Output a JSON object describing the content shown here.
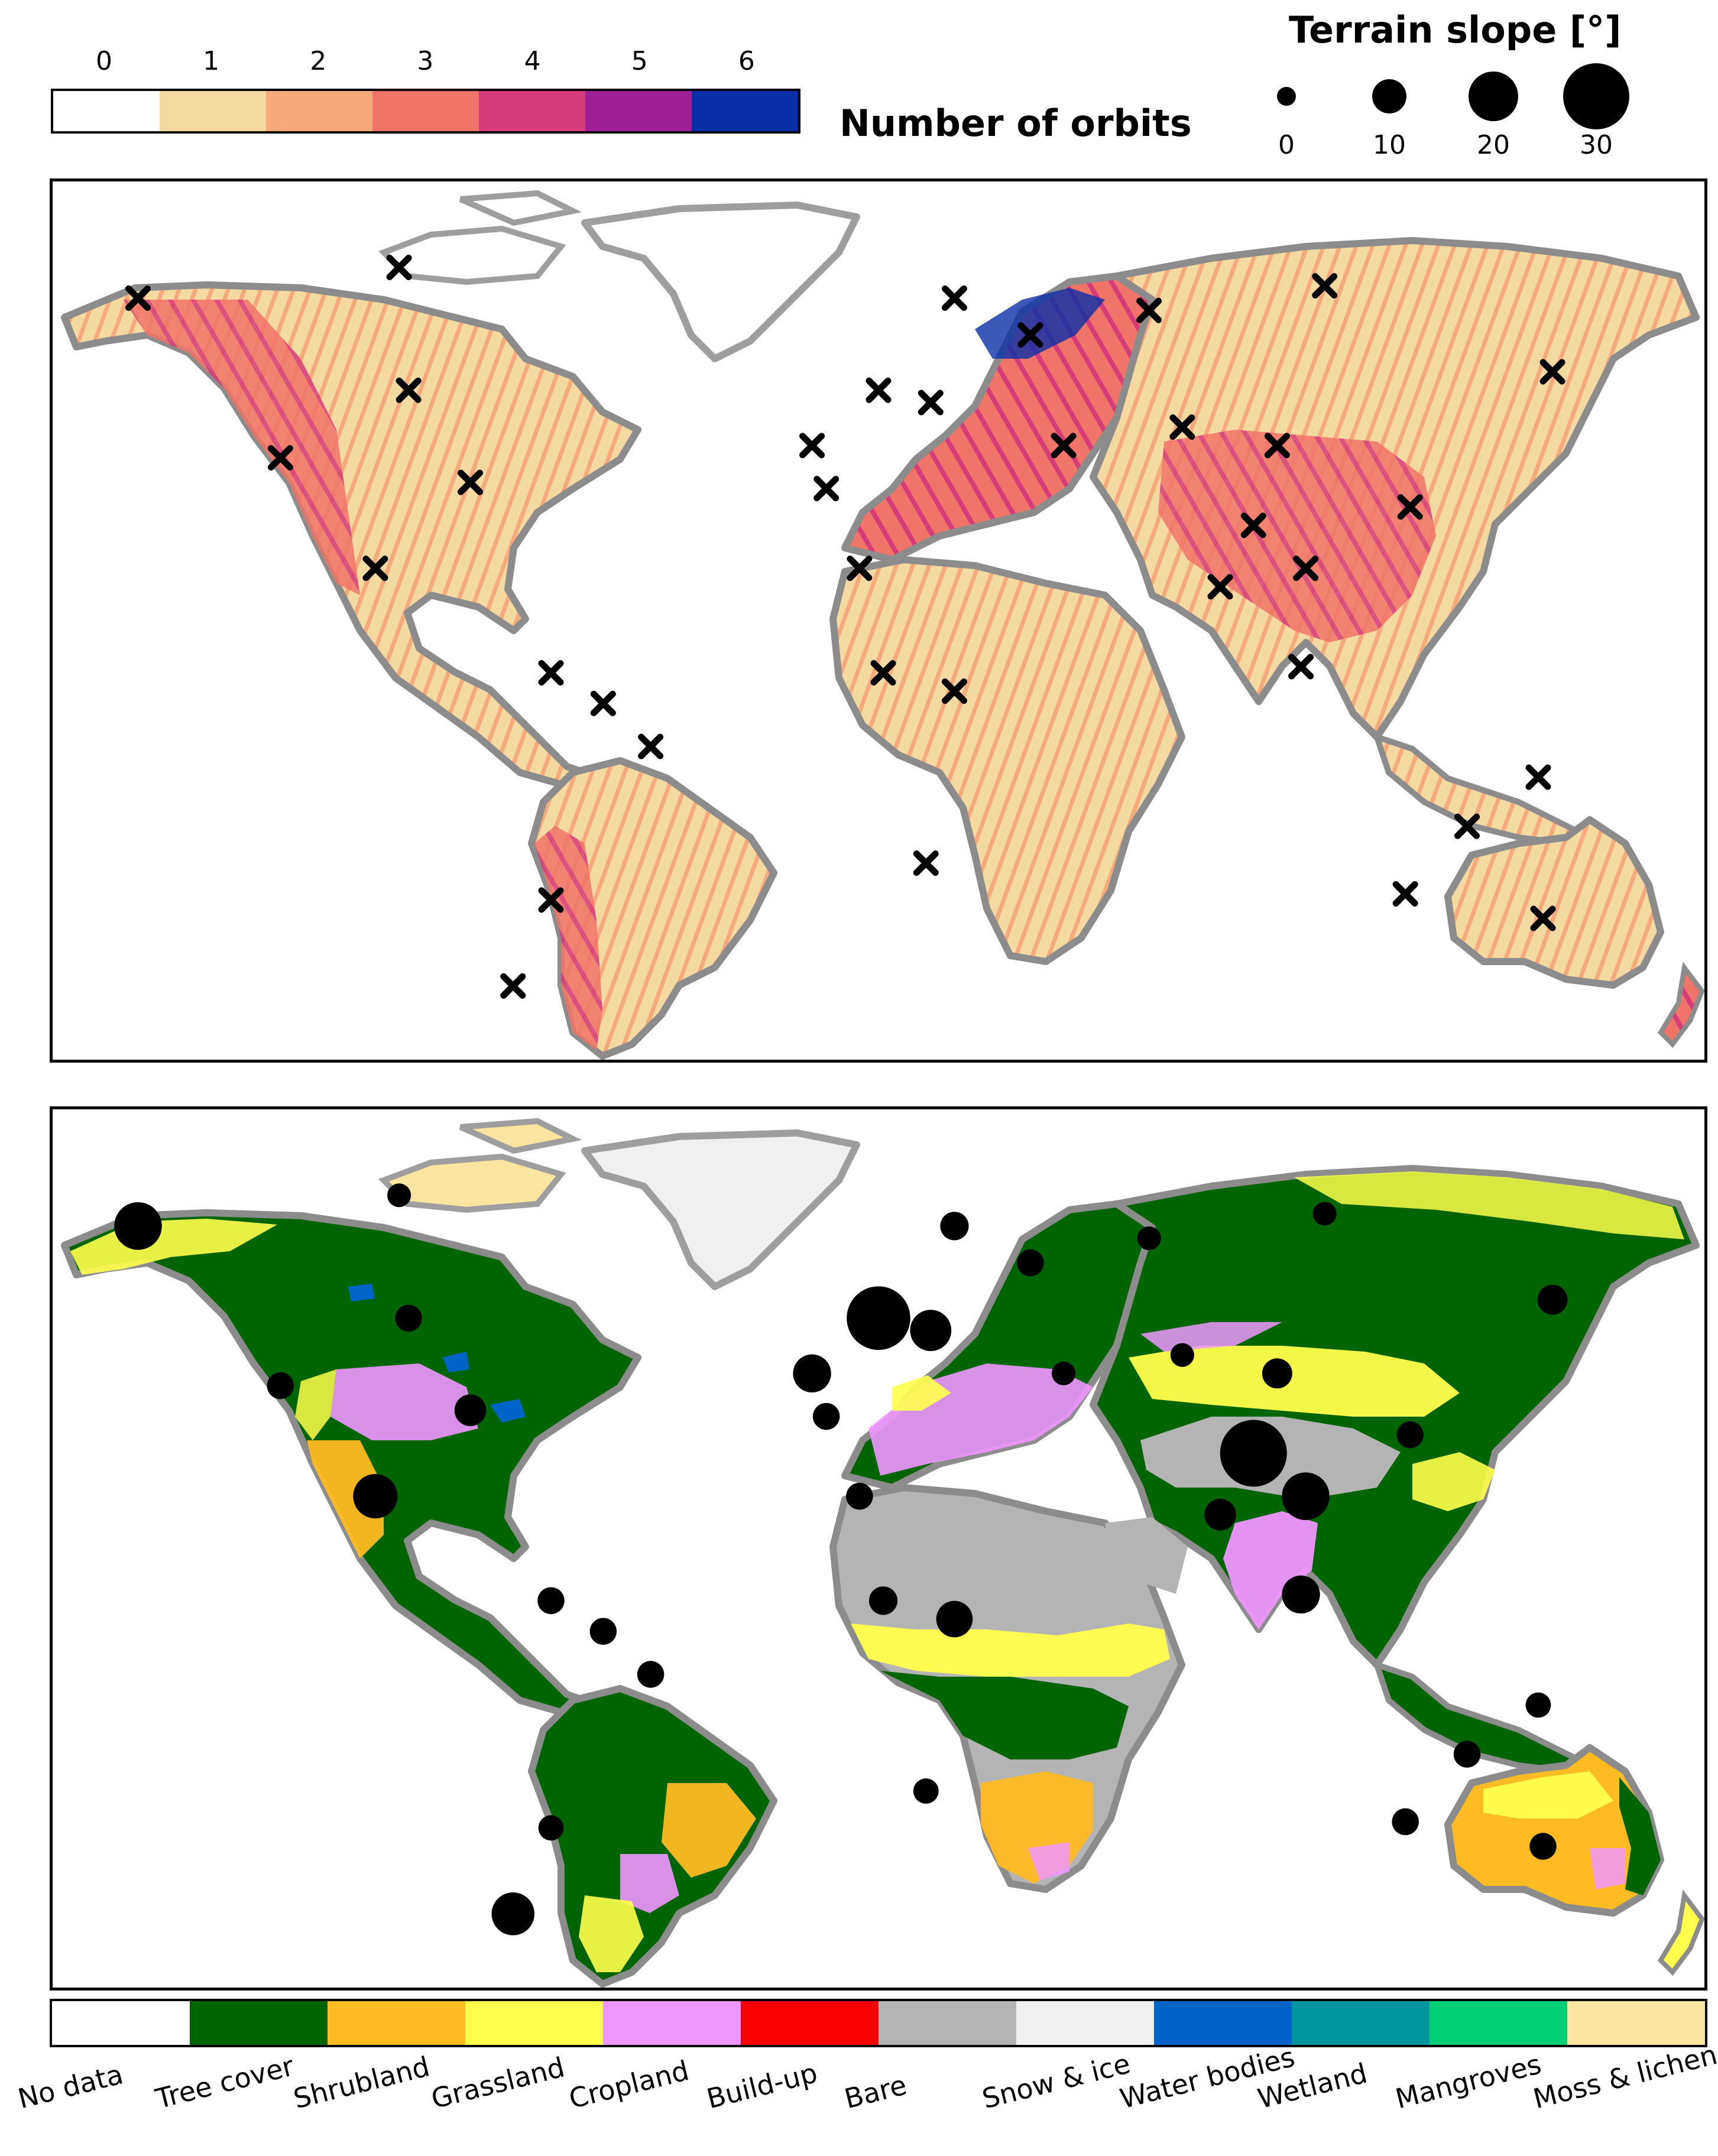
{
  "orbits_legend": {
    "title": "Number of orbits",
    "ticks": [
      "0",
      "1",
      "2",
      "3",
      "4",
      "5",
      "6"
    ],
    "colors": [
      "#ffffff",
      "#f4d9a0",
      "#f6a97a",
      "#f07468",
      "#d63b7a",
      "#a01f97",
      "#0a2fa8"
    ]
  },
  "slope_legend": {
    "title": "Terrain slope [°]",
    "values": [
      "0",
      "10",
      "20",
      "30"
    ]
  },
  "landcover_legend": {
    "classes": [
      {
        "label": "No data",
        "color": "#ffffff"
      },
      {
        "label": "Tree cover",
        "color": "#006400"
      },
      {
        "label": "Shrubland",
        "color": "#ffbb22"
      },
      {
        "label": "Grassland",
        "color": "#ffff4c"
      },
      {
        "label": "Cropland",
        "color": "#f096ff"
      },
      {
        "label": "Build-up",
        "color": "#fa0000"
      },
      {
        "label": "Bare",
        "color": "#b4b4b4"
      },
      {
        "label": "Snow & ice",
        "color": "#f0f0f0"
      },
      {
        "label": "Water bodies",
        "color": "#0064c8"
      },
      {
        "label": "Wetland",
        "color": "#0096a0"
      },
      {
        "label": "Mangroves",
        "color": "#00cf75"
      },
      {
        "label": "Moss & lichen",
        "color": "#fae6a0"
      }
    ]
  },
  "sites": [
    {
      "lon": -150,
      "lat": 64,
      "slope": 18
    },
    {
      "lon": -95,
      "lat": 69,
      "slope": 3
    },
    {
      "lon": -93,
      "lat": 49,
      "slope": 5
    },
    {
      "lon": -120,
      "lat": 38,
      "slope": 5
    },
    {
      "lon": -80,
      "lat": 34,
      "slope": 8
    },
    {
      "lon": -100,
      "lat": 20,
      "slope": 16
    },
    {
      "lon": -63,
      "lat": 3,
      "slope": 5
    },
    {
      "lon": -52,
      "lat": -2,
      "slope": 5
    },
    {
      "lon": -42,
      "lat": -9,
      "slope": 5
    },
    {
      "lon": -63,
      "lat": -34,
      "slope": 4
    },
    {
      "lon": -71,
      "lat": -48,
      "slope": 15
    },
    {
      "lon": -8,
      "lat": 40,
      "slope": 12
    },
    {
      "lon": -5,
      "lat": 33,
      "slope": 5
    },
    {
      "lon": 6,
      "lat": 49,
      "slope": 28
    },
    {
      "lon": 17,
      "lat": 47,
      "slope": 14
    },
    {
      "lon": 22,
      "lat": 64,
      "slope": 6
    },
    {
      "lon": 38,
      "lat": 58,
      "slope": 5
    },
    {
      "lon": 63,
      "lat": 62,
      "slope": 3
    },
    {
      "lon": 100,
      "lat": 66,
      "slope": 3
    },
    {
      "lon": 148,
      "lat": 52,
      "slope": 7
    },
    {
      "lon": 45,
      "lat": 40,
      "slope": 3
    },
    {
      "lon": 70,
      "lat": 43,
      "slope": 3
    },
    {
      "lon": 90,
      "lat": 40,
      "slope": 7
    },
    {
      "lon": 85,
      "lat": 27,
      "slope": 30
    },
    {
      "lon": 96,
      "lat": 20,
      "slope": 18
    },
    {
      "lon": 78,
      "lat": 17,
      "slope": 8
    },
    {
      "lon": 118,
      "lat": 30,
      "slope": 5
    },
    {
      "lon": 95,
      "lat": 4,
      "slope": 12
    },
    {
      "lon": 2,
      "lat": 20,
      "slope": 5
    },
    {
      "lon": 7,
      "lat": 3,
      "slope": 6
    },
    {
      "lon": 22,
      "lat": 0,
      "slope": 11
    },
    {
      "lon": 16,
      "lat": -28,
      "slope": 4
    },
    {
      "lon": 130,
      "lat": -22,
      "slope": 5
    },
    {
      "lon": 145,
      "lat": -14,
      "slope": 4
    },
    {
      "lon": 117,
      "lat": -33,
      "slope": 5
    },
    {
      "lon": 146,
      "lat": -37,
      "slope": 5
    }
  ]
}
